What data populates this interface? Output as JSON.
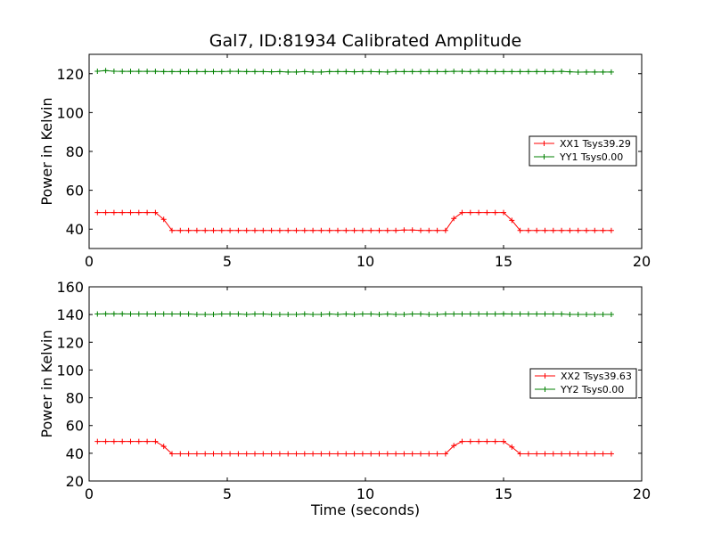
{
  "chart_data": [
    {
      "type": "line",
      "title": "Gal7, ID:81934 Calibrated Amplitude",
      "xlabel": "",
      "ylabel": "Power in Kelvin",
      "xlim": [
        0,
        20
      ],
      "ylim": [
        30,
        130
      ],
      "xticks": [
        0,
        5,
        10,
        15,
        20
      ],
      "yticks": [
        40,
        60,
        80,
        100,
        120
      ],
      "grid": false,
      "legend_position": "right",
      "x": [
        0.3,
        0.6,
        0.9,
        1.2,
        1.5,
        1.8,
        2.1,
        2.4,
        2.7,
        3.0,
        3.3,
        3.6,
        3.9,
        4.2,
        4.5,
        4.8,
        5.1,
        5.4,
        5.7,
        6.0,
        6.3,
        6.6,
        6.9,
        7.2,
        7.5,
        7.8,
        8.1,
        8.4,
        8.7,
        9.0,
        9.3,
        9.6,
        9.9,
        10.2,
        10.5,
        10.8,
        11.1,
        11.4,
        11.7,
        12.0,
        12.3,
        12.6,
        12.9,
        13.2,
        13.5,
        13.8,
        14.1,
        14.4,
        14.7,
        15.0,
        15.3,
        15.6,
        15.9,
        16.2,
        16.5,
        16.8,
        17.1,
        17.4,
        17.7,
        18.0,
        18.3,
        18.6,
        18.9
      ],
      "series": [
        {
          "name": "XX1 Tsys39.29",
          "color": "#ff0000",
          "values": [
            48.5,
            48.5,
            48.5,
            48.5,
            48.5,
            48.5,
            48.5,
            48.5,
            45,
            39.3,
            39.3,
            39.3,
            39.3,
            39.3,
            39.3,
            39.3,
            39.3,
            39.3,
            39.3,
            39.3,
            39.3,
            39.3,
            39.3,
            39.3,
            39.3,
            39.3,
            39.3,
            39.3,
            39.3,
            39.3,
            39.3,
            39.3,
            39.3,
            39.3,
            39.3,
            39.3,
            39.3,
            39.5,
            39.5,
            39.3,
            39.3,
            39.3,
            39.3,
            45.5,
            48.5,
            48.5,
            48.5,
            48.5,
            48.5,
            48.5,
            44.5,
            39.3,
            39.3,
            39.3,
            39.3,
            39.3,
            39.3,
            39.3,
            39.3,
            39.3,
            39.3,
            39.3,
            39.3
          ]
        },
        {
          "name": "YY1 Tsys0.00",
          "color": "#008000",
          "values": [
            121.3,
            121.6,
            121.3,
            121.2,
            121.2,
            121.2,
            121.2,
            121.2,
            121.1,
            121.1,
            121.1,
            121.1,
            121.1,
            121.1,
            121.1,
            121.1,
            121.2,
            121.2,
            121.1,
            121.1,
            121.1,
            121,
            121.1,
            120.9,
            120.9,
            121.1,
            120.9,
            120.9,
            121.1,
            121.1,
            121.1,
            121,
            121.1,
            121.1,
            121,
            120.9,
            121.1,
            121.1,
            121.1,
            121.1,
            121.1,
            121.1,
            121.1,
            121.2,
            121.2,
            121.1,
            121.2,
            121.1,
            121.1,
            121.1,
            121.1,
            121.1,
            121.1,
            121.1,
            121.1,
            121.1,
            121.2,
            121,
            120.8,
            120.9,
            120.9,
            120.9,
            120.9
          ]
        }
      ]
    },
    {
      "type": "line",
      "title": "",
      "xlabel": "Time (seconds)",
      "ylabel": "Power in Kelvin",
      "xlim": [
        0,
        20
      ],
      "ylim": [
        20,
        160
      ],
      "xticks": [
        0,
        5,
        10,
        15,
        20
      ],
      "yticks": [
        20,
        40,
        60,
        80,
        100,
        120,
        140,
        160
      ],
      "grid": false,
      "legend_position": "right",
      "x": [
        0.3,
        0.6,
        0.9,
        1.2,
        1.5,
        1.8,
        2.1,
        2.4,
        2.7,
        3.0,
        3.3,
        3.6,
        3.9,
        4.2,
        4.5,
        4.8,
        5.1,
        5.4,
        5.7,
        6.0,
        6.3,
        6.6,
        6.9,
        7.2,
        7.5,
        7.8,
        8.1,
        8.4,
        8.7,
        9.0,
        9.3,
        9.6,
        9.9,
        10.2,
        10.5,
        10.8,
        11.1,
        11.4,
        11.7,
        12.0,
        12.3,
        12.6,
        12.9,
        13.2,
        13.5,
        13.8,
        14.1,
        14.4,
        14.7,
        15.0,
        15.3,
        15.6,
        15.9,
        16.2,
        16.5,
        16.8,
        17.1,
        17.4,
        17.7,
        18.0,
        18.3,
        18.6,
        18.9
      ],
      "series": [
        {
          "name": "XX2 Tsys39.63",
          "color": "#ff0000",
          "values": [
            48.5,
            48.5,
            48.5,
            48.5,
            48.5,
            48.5,
            48.5,
            48.5,
            45,
            39.6,
            39.6,
            39.6,
            39.6,
            39.6,
            39.6,
            39.6,
            39.6,
            39.6,
            39.6,
            39.6,
            39.6,
            39.6,
            39.6,
            39.6,
            39.6,
            39.6,
            39.6,
            39.6,
            39.6,
            39.6,
            39.6,
            39.6,
            39.6,
            39.6,
            39.6,
            39.6,
            39.6,
            39.6,
            39.6,
            39.6,
            39.6,
            39.6,
            39.6,
            45.5,
            48.5,
            48.5,
            48.5,
            48.5,
            48.5,
            48.5,
            44.5,
            39.6,
            39.6,
            39.6,
            39.6,
            39.6,
            39.6,
            39.6,
            39.6,
            39.6,
            39.6,
            39.6,
            39.6
          ]
        },
        {
          "name": "YY2 Tsys0.00",
          "color": "#008000",
          "values": [
            140.4,
            140.5,
            140.5,
            140.5,
            140.4,
            140.4,
            140.4,
            140.4,
            140.4,
            140.4,
            140.4,
            140.4,
            140.1,
            140.1,
            140.1,
            140.4,
            140.4,
            140.4,
            140.1,
            140.4,
            140.4,
            140.1,
            140.1,
            140.1,
            140.1,
            140.4,
            140.1,
            140.1,
            140.4,
            140.1,
            140.4,
            140.1,
            140.4,
            140.4,
            140.1,
            140.4,
            140.1,
            140.1,
            140.4,
            140.4,
            140.1,
            140.1,
            140.4,
            140.4,
            140.4,
            140.4,
            140.4,
            140.4,
            140.4,
            140.5,
            140.4,
            140.4,
            140.4,
            140.4,
            140.4,
            140.4,
            140.4,
            140.1,
            140.1,
            140.1,
            140.1,
            140.1,
            140.1
          ]
        }
      ]
    }
  ]
}
